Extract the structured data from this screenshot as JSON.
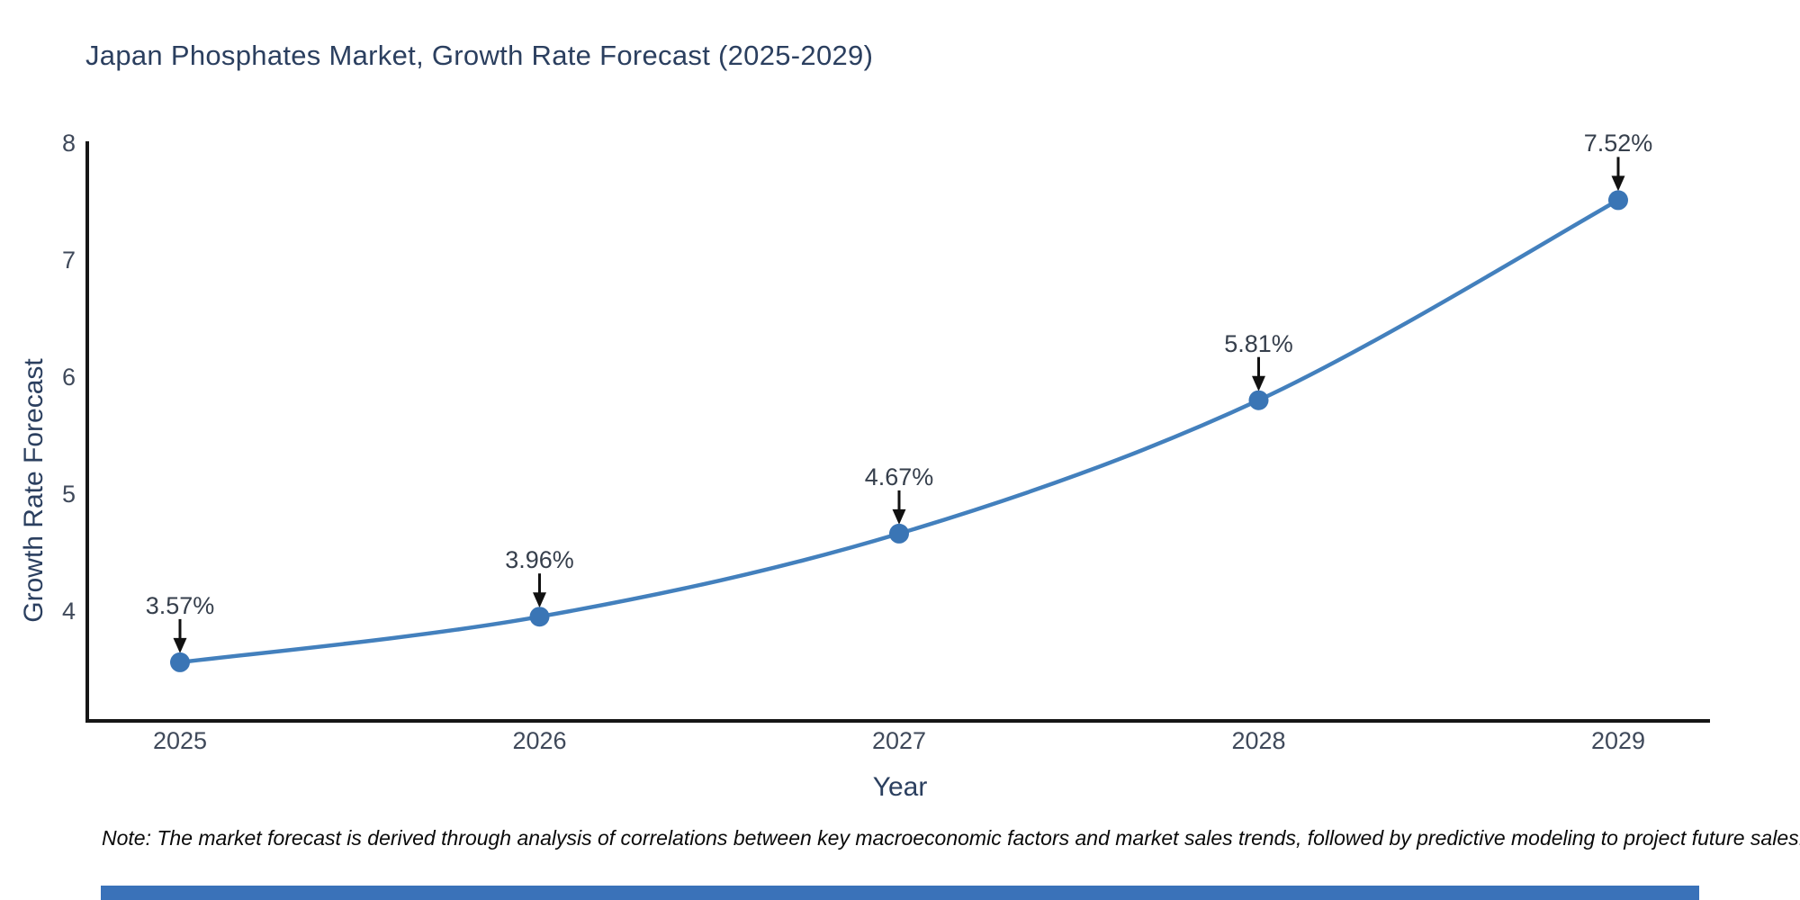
{
  "title": "Japan Phosphates Market, Growth Rate Forecast (2025-2029)",
  "note": "Note: The market forecast is derived through analysis of correlations between key macroeconomic factors and market sales trends, followed by predictive modeling to project future sales.",
  "colors": {
    "title_text": "#2b3f5f",
    "tick_text": "#3f495a",
    "annotation_text": "#363f4c",
    "axis_line": "#161616",
    "line": "#4380bd",
    "marker": "#3a75b5",
    "arrow": "#111111",
    "note_text": "#0a0a0a",
    "footer_bar": "#3a72b9",
    "background": "#ffffff"
  },
  "chart_data": {
    "type": "line",
    "title": "Japan Phosphates Market, Growth Rate Forecast (2025-2029)",
    "x": [
      2025,
      2026,
      2027,
      2028,
      2029
    ],
    "values": [
      3.57,
      3.96,
      4.67,
      5.81,
      7.52
    ],
    "point_labels": [
      "3.57%",
      "3.96%",
      "4.67%",
      "5.81%",
      "7.52%"
    ],
    "xticks": [
      "2025",
      "2026",
      "2027",
      "2028",
      "2029"
    ],
    "yticks": [
      4,
      5,
      6,
      7,
      8
    ],
    "xlabel": "Year",
    "ylabel": "Growth Rate Forecast",
    "ylim": [
      3.08,
      8
    ],
    "xlim": [
      2024.74,
      2029.26
    ],
    "grid": false,
    "legend_position": "none",
    "line_shape": "spline",
    "annotations": "value labels with black arrows pointing down to each marker"
  }
}
